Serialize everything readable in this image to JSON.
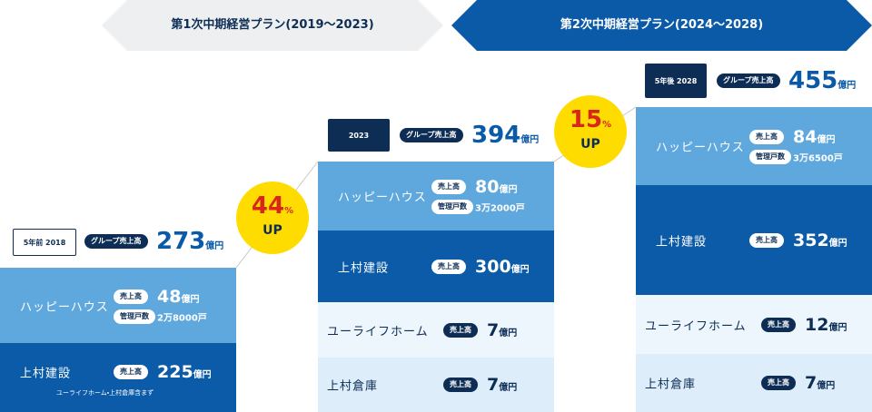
{
  "header": {
    "plan1": "第1次中期経営プラン(2019〜2023)",
    "plan2": "第2次中期経営プラン(2024〜2028)"
  },
  "columns": [
    {
      "period": "5年前 2018",
      "group_label": "グループ売上高",
      "group_value": 273,
      "unit": "億円",
      "segments": [
        {
          "name": "ハッピーハウス",
          "sales_label": "売上高",
          "sales": 48,
          "unit": "億円",
          "units_label": "管理戸数",
          "units": "2万8000戸"
        },
        {
          "name": "上村建設",
          "sales_label": "売上高",
          "sales": 225,
          "unit": "億円",
          "note": "ユーライフホーム・上村倉庫含まず"
        }
      ]
    },
    {
      "period": "2023",
      "group_label": "グループ売上高",
      "group_value": 394,
      "unit": "億円",
      "segments": [
        {
          "name": "ハッピーハウス",
          "sales_label": "売上高",
          "sales": 80,
          "unit": "億円",
          "units_label": "管理戸数",
          "units": "3万2000戸"
        },
        {
          "name": "上村建設",
          "sales_label": "売上高",
          "sales": 300,
          "unit": "億円"
        },
        {
          "name": "ユーライフホーム",
          "sales_label": "売上高",
          "sales": 7,
          "unit": "億円"
        },
        {
          "name": "上村倉庫",
          "sales_label": "売上高",
          "sales": 7,
          "unit": "億円"
        }
      ]
    },
    {
      "period": "5年後 2028",
      "group_label": "グループ売上高",
      "group_value": 455,
      "unit": "億円",
      "segments": [
        {
          "name": "ハッピーハウス",
          "sales_label": "売上高",
          "sales": 84,
          "unit": "億円",
          "units_label": "管理戸数",
          "units": "3万6500戸"
        },
        {
          "name": "上村建設",
          "sales_label": "売上高",
          "sales": 352,
          "unit": "億円"
        },
        {
          "name": "ユーライフホーム",
          "sales_label": "売上高",
          "sales": 12,
          "unit": "億円"
        },
        {
          "name": "上村倉庫",
          "sales_label": "売上高",
          "sales": 7,
          "unit": "億円"
        }
      ]
    }
  ],
  "growth": [
    {
      "value": 44,
      "unit": "%",
      "label": "UP"
    },
    {
      "value": 15,
      "unit": "%",
      "label": "UP"
    }
  ]
}
